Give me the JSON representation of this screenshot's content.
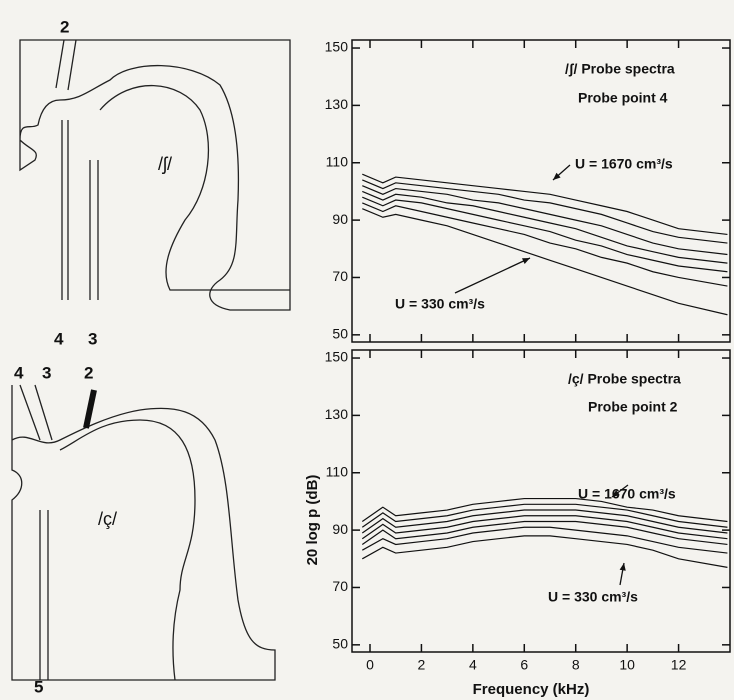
{
  "chart_data": [
    {
      "type": "line",
      "annotations": [
        "/ʃ/  Probe spectra",
        "Probe point 4",
        "U = 1670 cm³/s",
        "U = 330 cm³/s"
      ],
      "x": [
        -0.3,
        0.5,
        1,
        2,
        3,
        4,
        5,
        6,
        7,
        8,
        9,
        10,
        11,
        12,
        13.9
      ],
      "series": [
        {
          "color": "#111",
          "values": [
            106,
            103,
            105,
            104,
            103,
            102,
            101,
            100,
            99,
            97,
            95,
            93,
            90,
            87,
            85
          ]
        },
        {
          "color": "#111",
          "values": [
            104,
            101,
            103,
            102,
            101,
            100,
            99,
            97,
            96,
            94,
            92,
            89,
            86,
            84,
            82
          ]
        },
        {
          "color": "#111",
          "values": [
            102,
            99,
            101,
            100,
            99,
            97,
            96,
            94,
            92,
            90,
            88,
            85,
            82,
            80,
            78
          ]
        },
        {
          "color": "#111",
          "values": [
            100,
            97,
            99,
            98,
            96,
            95,
            93,
            91,
            89,
            87,
            84,
            81,
            79,
            77,
            75
          ]
        },
        {
          "color": "#111",
          "values": [
            98,
            95,
            97,
            96,
            94,
            92,
            90,
            88,
            86,
            83,
            81,
            78,
            76,
            74,
            72
          ]
        },
        {
          "color": "#111",
          "values": [
            96,
            93,
            95,
            93,
            91,
            89,
            87,
            85,
            82,
            80,
            77,
            75,
            72,
            70,
            67
          ]
        },
        {
          "color": "#111",
          "values": [
            94,
            91,
            92,
            90,
            88,
            85,
            82,
            79,
            76,
            73,
            70,
            67,
            64,
            61,
            57
          ]
        }
      ],
      "xlim": [
        -0.7,
        14
      ],
      "ylim": [
        47.5,
        152.8
      ],
      "yticks": [
        50,
        70,
        90,
        110,
        130,
        150
      ],
      "xticks": [
        0,
        2,
        4,
        6,
        8,
        10,
        12
      ],
      "show_x_tick_labels": false
    },
    {
      "type": "line",
      "annotations": [
        "/ç/  Probe spectra",
        "Probe point 2",
        "U = 1670 cm³/s",
        "U = 330 cm³/s"
      ],
      "x_label": "Frequency (kHz)",
      "y_label": "20 log p (dB)",
      "x": [
        -0.3,
        0.5,
        1,
        2,
        3,
        4,
        5,
        6,
        7,
        8,
        9,
        10,
        11,
        12,
        13.9
      ],
      "series": [
        {
          "color": "#111",
          "values": [
            93,
            98,
            95,
            96,
            97,
            99,
            100,
            101,
            101,
            101,
            100,
            98,
            97,
            95,
            93
          ]
        },
        {
          "color": "#111",
          "values": [
            91,
            96,
            93,
            94,
            95,
            97,
            98,
            99,
            99,
            99,
            98,
            97,
            95,
            93,
            91
          ]
        },
        {
          "color": "#111",
          "values": [
            89,
            94,
            91,
            92,
            93,
            95,
            96,
            97,
            97,
            97,
            96,
            95,
            93,
            91,
            89
          ]
        },
        {
          "color": "#111",
          "values": [
            87,
            92,
            89,
            90,
            91,
            93,
            94,
            95,
            95,
            95,
            94,
            93,
            91,
            89,
            87
          ]
        },
        {
          "color": "#111",
          "values": [
            85,
            90,
            87,
            88,
            89,
            91,
            92,
            93,
            93,
            93,
            92,
            91,
            89,
            87,
            85
          ]
        },
        {
          "color": "#111",
          "values": [
            83,
            87,
            85,
            86,
            87,
            89,
            90,
            91,
            91,
            90,
            89,
            88,
            86,
            84,
            82
          ]
        },
        {
          "color": "#111",
          "values": [
            80,
            84,
            82,
            83,
            84,
            86,
            87,
            88,
            88,
            87,
            86,
            85,
            83,
            80,
            77
          ]
        }
      ],
      "xlim": [
        -0.7,
        14
      ],
      "ylim": [
        47.5,
        152.8
      ],
      "yticks": [
        50,
        70,
        90,
        110,
        130,
        150
      ],
      "xticks": [
        0,
        2,
        4,
        6,
        8,
        10,
        12
      ],
      "show_x_tick_labels": true
    }
  ],
  "diagrams": [
    {
      "labels": [
        "2",
        "4",
        "3",
        "/ʃ/"
      ]
    },
    {
      "labels": [
        "4",
        "3",
        "2",
        "/ç/",
        "5"
      ]
    }
  ]
}
